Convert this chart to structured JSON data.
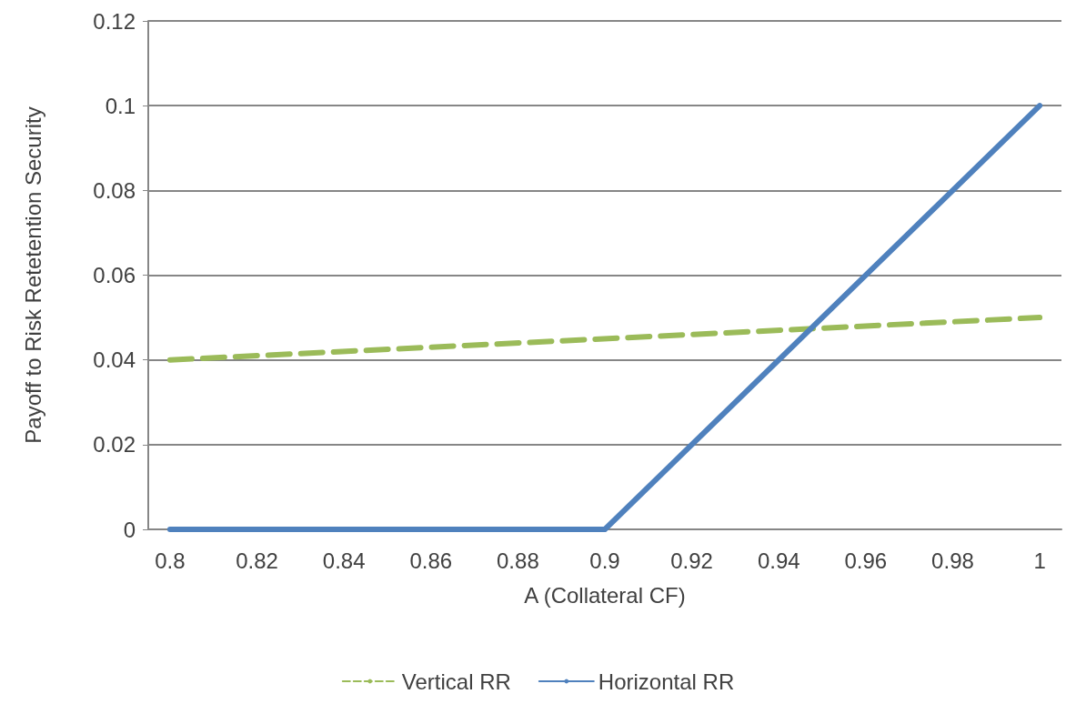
{
  "chart_data": {
    "type": "line",
    "xlabel": "A (Collateral CF)",
    "ylabel": "Payoff to Risk Retetention Security",
    "xlim": [
      0.795,
      1.005
    ],
    "xticks": [
      0.8,
      0.82,
      0.84,
      0.86,
      0.88,
      0.9,
      0.92,
      0.94,
      0.96,
      0.98,
      1
    ],
    "ylim": [
      0,
      0.12
    ],
    "yticks": [
      0,
      0.02,
      0.04,
      0.06,
      0.08,
      0.1,
      0.12
    ],
    "grid": "y",
    "legend": "bottom",
    "marker": "none",
    "series": [
      {
        "name": "Vertical RR",
        "color": "#9bbb59",
        "line_style": "dashed",
        "x": [
          0.8,
          1
        ],
        "values": [
          0.04,
          0.05
        ]
      },
      {
        "name": "Horizontal RR",
        "color": "#4f81bd",
        "line_style": "solid",
        "x": [
          0.8,
          0.9,
          1
        ],
        "values": [
          0,
          0,
          0.1
        ]
      }
    ]
  }
}
